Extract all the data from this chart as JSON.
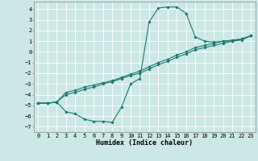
{
  "xlabel": "Humidex (Indice chaleur)",
  "bg_color": "#cce8e4",
  "grid_color": "#b0d8d4",
  "line_color": "#1a7a6e",
  "xlim": [
    -0.5,
    23.5
  ],
  "ylim": [
    -7.5,
    4.7
  ],
  "xticks": [
    0,
    1,
    2,
    3,
    4,
    5,
    6,
    7,
    8,
    9,
    10,
    11,
    12,
    13,
    14,
    15,
    16,
    17,
    18,
    19,
    20,
    21,
    22,
    23
  ],
  "yticks": [
    -7,
    -6,
    -5,
    -4,
    -3,
    -2,
    -1,
    0,
    1,
    2,
    3,
    4
  ],
  "curve1_x": [
    0,
    1,
    2,
    3,
    4,
    5,
    6,
    7,
    8,
    9,
    10,
    11,
    12,
    13,
    14,
    15,
    16,
    17,
    18,
    19,
    20,
    21,
    22,
    23
  ],
  "curve1_y": [
    -4.8,
    -4.8,
    -4.7,
    -5.6,
    -5.8,
    -6.3,
    -6.5,
    -6.5,
    -6.6,
    -5.2,
    -3.0,
    -2.5,
    2.8,
    4.1,
    4.2,
    4.2,
    3.6,
    1.4,
    1.0,
    0.9,
    1.0,
    1.0,
    1.2,
    1.5
  ],
  "curve2_x": [
    0,
    1,
    2,
    3,
    4,
    5,
    6,
    7,
    8,
    9,
    10,
    11,
    12,
    13,
    14,
    15,
    16,
    17,
    18,
    19,
    20,
    21,
    22,
    23
  ],
  "curve2_y": [
    -4.8,
    -4.8,
    -4.7,
    -3.8,
    -3.6,
    -3.3,
    -3.1,
    -2.9,
    -2.7,
    -2.4,
    -2.1,
    -1.8,
    -1.4,
    -1.0,
    -0.7,
    -0.3,
    0.0,
    0.4,
    0.6,
    0.8,
    1.0,
    1.1,
    1.2,
    1.5
  ],
  "curve3_x": [
    0,
    1,
    2,
    3,
    4,
    5,
    6,
    7,
    8,
    9,
    10,
    11,
    12,
    13,
    14,
    15,
    16,
    17,
    18,
    19,
    20,
    21,
    22,
    23
  ],
  "curve3_y": [
    -4.8,
    -4.8,
    -4.7,
    -4.0,
    -3.8,
    -3.5,
    -3.3,
    -3.0,
    -2.8,
    -2.5,
    -2.2,
    -2.0,
    -1.6,
    -1.2,
    -0.9,
    -0.5,
    -0.2,
    0.2,
    0.4,
    0.6,
    0.8,
    1.0,
    1.1,
    1.5
  ]
}
